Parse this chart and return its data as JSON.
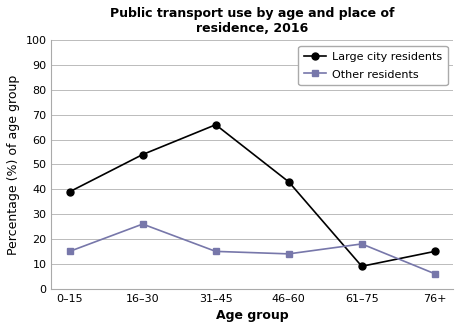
{
  "title": "Public transport use by age and place of\nresidence, 2016",
  "xlabel": "Age group",
  "ylabel": "Percentage (%) of age group",
  "age_groups": [
    "0–15",
    "16–30",
    "31–45",
    "46–60",
    "61–75",
    "76+"
  ],
  "large_city": [
    39,
    54,
    66,
    43,
    9,
    15
  ],
  "other_residents": [
    15,
    26,
    15,
    14,
    18,
    6
  ],
  "large_city_color": "#000000",
  "other_color": "#7777aa",
  "large_city_label": "Large city residents",
  "other_label": "Other residents",
  "ylim": [
    0,
    100
  ],
  "yticks": [
    0,
    10,
    20,
    30,
    40,
    50,
    60,
    70,
    80,
    90,
    100
  ],
  "large_city_marker": "o",
  "other_marker": "s",
  "background_color": "#ffffff",
  "grid_color": "#bbbbbb",
  "title_fontsize": 9,
  "axis_label_fontsize": 9,
  "tick_fontsize": 8,
  "legend_fontsize": 8
}
